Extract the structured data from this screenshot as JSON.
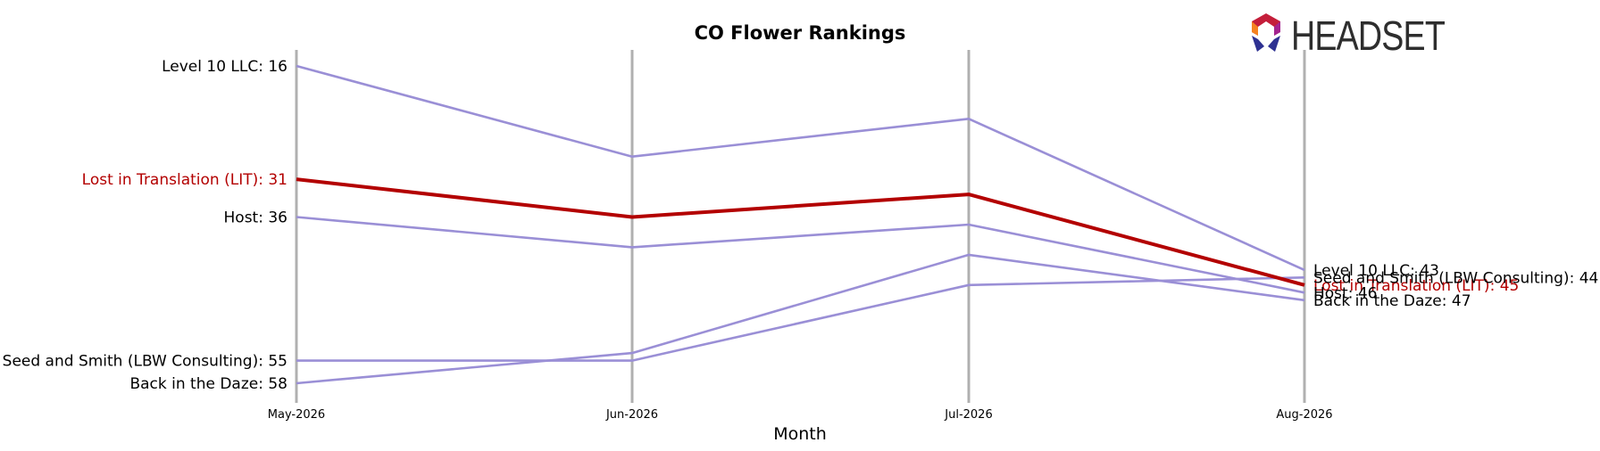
{
  "chart_data": {
    "type": "line",
    "title": "CO Flower Rankings",
    "xlabel": "Month",
    "ylabel": "",
    "x": [
      "May-2026",
      "Jun-2026",
      "Jul-2026",
      "Aug-2026"
    ],
    "ylim": [
      59,
      15
    ],
    "inverted_y": true,
    "grid": "vertical lines at each month",
    "highlight_color": "#b30000",
    "series_color": "#9a8fd6",
    "axis_line_color": "#b0b0b0",
    "series": [
      {
        "name": "Level 10 LLC",
        "values": [
          16,
          28,
          23,
          43
        ],
        "highlight": false,
        "start_label": "Level 10 LLC: 16",
        "end_label": "Level 10 LLC: 43"
      },
      {
        "name": "Lost in Translation (LIT)",
        "values": [
          31,
          36,
          33,
          45
        ],
        "highlight": true,
        "start_label": "Lost in Translation (LIT): 31",
        "end_label": "Lost in Translation (LIT): 45"
      },
      {
        "name": "Host",
        "values": [
          36,
          40,
          37,
          46
        ],
        "highlight": false,
        "start_label": "Host: 36",
        "end_label": "Host: 46"
      },
      {
        "name": "Seed and Smith (LBW Consulting)",
        "values": [
          55,
          55,
          45,
          44
        ],
        "highlight": false,
        "start_label": "Seed and Smith (LBW Consulting): 55",
        "end_label": "Seed and Smith (LBW Consulting): 44"
      },
      {
        "name": "Back in the Daze",
        "values": [
          58,
          54,
          41,
          47
        ],
        "highlight": false,
        "start_label": "Back in the Daze: 58",
        "end_label": "Back in the Daze: 47"
      }
    ]
  },
  "logo": {
    "text": "HEADSET",
    "colors": [
      "#e2231a",
      "#f58220",
      "#a3238e",
      "#2e3192",
      "#c41e3a"
    ]
  }
}
